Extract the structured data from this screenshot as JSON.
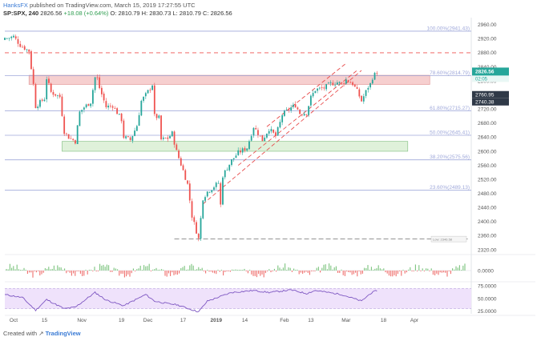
{
  "header": {
    "author": "HanksFX",
    "published": "published on TradingView.com, March 15, 2019 17:27:55 UTC",
    "symbol": "SP:SPX, 240",
    "last": "2826.56",
    "change": "+18.08 (+0.64%)",
    "ohlc": "O: 2810.79  H: 2830.73  L: 2810.79  C: 2826.56"
  },
  "footer": {
    "prefix": "Created with",
    "brand": "TradingView"
  },
  "colors": {
    "up": "#26a69a",
    "down": "#ef5350",
    "fib": "#9fa8da",
    "resistance_zone": "#f4c7c7",
    "support_zone": "#d9eed3",
    "channel": "#e84c4c",
    "rsi_line": "#7e57c2",
    "rsi_band": "#efe2fb",
    "price_tag": "#3d4a5c"
  },
  "chart_data": [
    {
      "type": "candlestick",
      "symbol": "SP:SPX",
      "timeframe": "240",
      "ylim": [
        2320,
        2980
      ],
      "y_ticks": [
        "2960.00",
        "2920.00",
        "2880.00",
        "2840.00",
        "2800.00",
        "2760.00",
        "2720.00",
        "2680.00",
        "2640.00",
        "2600.00",
        "2560.00",
        "2520.00",
        "2480.00",
        "2440.00",
        "2400.00",
        "2360.00",
        "2320.00"
      ],
      "x_ticks": [
        "Oct",
        "15",
        "Nov",
        "19",
        "Dec",
        "17",
        "2019",
        "14",
        "Feb",
        "13",
        "Mar",
        "18",
        "Apr"
      ],
      "x_tick_dates": [
        "2018-10-01",
        "2018-10-15",
        "2018-11-01",
        "2018-11-19",
        "2018-12-01",
        "2018-12-17",
        "2019-01-01",
        "2019-01-14",
        "2019-02-01",
        "2019-02-13",
        "2019-03-01",
        "2019-03-18",
        "2019-04-01"
      ],
      "close_path": [
        {
          "date": "2018-09-27",
          "close": 2920
        },
        {
          "date": "2018-10-01",
          "close": 2926
        },
        {
          "date": "2018-10-04",
          "close": 2902
        },
        {
          "date": "2018-10-08",
          "close": 2885
        },
        {
          "date": "2018-10-10",
          "close": 2790
        },
        {
          "date": "2018-10-11",
          "close": 2728
        },
        {
          "date": "2018-10-15",
          "close": 2750
        },
        {
          "date": "2018-10-16",
          "close": 2808
        },
        {
          "date": "2018-10-18",
          "close": 2768
        },
        {
          "date": "2018-10-22",
          "close": 2755
        },
        {
          "date": "2018-10-24",
          "close": 2656
        },
        {
          "date": "2018-10-26",
          "close": 2640
        },
        {
          "date": "2018-10-29",
          "close": 2628
        },
        {
          "date": "2018-10-31",
          "close": 2711
        },
        {
          "date": "2018-11-02",
          "close": 2725
        },
        {
          "date": "2018-11-05",
          "close": 2740
        },
        {
          "date": "2018-11-07",
          "close": 2810
        },
        {
          "date": "2018-11-08",
          "close": 2806
        },
        {
          "date": "2018-11-09",
          "close": 2780
        },
        {
          "date": "2018-11-12",
          "close": 2726
        },
        {
          "date": "2018-11-15",
          "close": 2730
        },
        {
          "date": "2018-11-19",
          "close": 2690
        },
        {
          "date": "2018-11-20",
          "close": 2641
        },
        {
          "date": "2018-11-23",
          "close": 2632
        },
        {
          "date": "2018-11-26",
          "close": 2673
        },
        {
          "date": "2018-11-28",
          "close": 2743
        },
        {
          "date": "2018-11-30",
          "close": 2760
        },
        {
          "date": "2018-12-03",
          "close": 2790
        },
        {
          "date": "2018-12-04",
          "close": 2700
        },
        {
          "date": "2018-12-06",
          "close": 2695
        },
        {
          "date": "2018-12-07",
          "close": 2633
        },
        {
          "date": "2018-12-10",
          "close": 2637
        },
        {
          "date": "2018-12-12",
          "close": 2651
        },
        {
          "date": "2018-12-14",
          "close": 2599
        },
        {
          "date": "2018-12-17",
          "close": 2545
        },
        {
          "date": "2018-12-19",
          "close": 2506
        },
        {
          "date": "2018-12-21",
          "close": 2416
        },
        {
          "date": "2018-12-24",
          "close": 2351
        },
        {
          "date": "2018-12-26",
          "close": 2467
        },
        {
          "date": "2018-12-28",
          "close": 2485
        },
        {
          "date": "2019-01-02",
          "close": 2510
        },
        {
          "date": "2019-01-03",
          "close": 2447
        },
        {
          "date": "2019-01-04",
          "close": 2531
        },
        {
          "date": "2019-01-08",
          "close": 2574
        },
        {
          "date": "2019-01-11",
          "close": 2596
        },
        {
          "date": "2019-01-15",
          "close": 2610
        },
        {
          "date": "2019-01-18",
          "close": 2670
        },
        {
          "date": "2019-01-22",
          "close": 2632
        },
        {
          "date": "2019-01-25",
          "close": 2664
        },
        {
          "date": "2019-01-28",
          "close": 2643
        },
        {
          "date": "2019-01-30",
          "close": 2681
        },
        {
          "date": "2019-01-31",
          "close": 2704
        },
        {
          "date": "2019-02-04",
          "close": 2724
        },
        {
          "date": "2019-02-06",
          "close": 2731
        },
        {
          "date": "2019-02-08",
          "close": 2708
        },
        {
          "date": "2019-02-11",
          "close": 2709
        },
        {
          "date": "2019-02-13",
          "close": 2753
        },
        {
          "date": "2019-02-15",
          "close": 2775
        },
        {
          "date": "2019-02-19",
          "close": 2780
        },
        {
          "date": "2019-02-22",
          "close": 2792
        },
        {
          "date": "2019-02-25",
          "close": 2796
        },
        {
          "date": "2019-02-27",
          "close": 2792
        },
        {
          "date": "2019-03-01",
          "close": 2803
        },
        {
          "date": "2019-03-04",
          "close": 2792
        },
        {
          "date": "2019-03-06",
          "close": 2771
        },
        {
          "date": "2019-03-08",
          "close": 2743
        },
        {
          "date": "2019-03-11",
          "close": 2783
        },
        {
          "date": "2019-03-12",
          "close": 2791
        },
        {
          "date": "2019-03-13",
          "close": 2810
        },
        {
          "date": "2019-03-15",
          "close": 2826
        }
      ],
      "last_price": "2826.56",
      "countdown": "02:05",
      "levels": [
        {
          "label": "100.00%(2941.43)",
          "value": 2941.43,
          "kind": "fib"
        },
        {
          "label": "78.60%(2814.79)",
          "value": 2814.79,
          "kind": "fib"
        },
        {
          "label": "61.80%(2715.27)",
          "value": 2715.27,
          "kind": "fib"
        },
        {
          "label": "50.00%(2645.41)",
          "value": 2645.41,
          "kind": "fib"
        },
        {
          "label": "38.20%(2575.56)",
          "value": 2575.56,
          "kind": "fib"
        },
        {
          "label": "23.60%(2489.13)",
          "value": 2489.13,
          "kind": "fib"
        },
        {
          "value": 2880,
          "kind": "dashed-red"
        },
        {
          "value": 2350.5,
          "kind": "dashed-low"
        }
      ],
      "price_tags": [
        {
          "label": "2760.95",
          "value": 2760.95
        },
        {
          "label": "2740.38",
          "value": 2740.38
        }
      ],
      "zones": [
        {
          "name": "resistance",
          "from": 2790,
          "to": 2816,
          "start": "2018-10-08",
          "end": "2019-04-08"
        },
        {
          "name": "support",
          "from": 2600,
          "to": 2628,
          "start": "2018-10-23",
          "end": "2019-03-29"
        }
      ],
      "channel": {
        "upper": [
          {
            "date": "2019-01-24",
            "value": 2670
          },
          {
            "date": "2019-03-01",
            "value": 2850
          }
        ],
        "lower": [
          {
            "date": "2018-12-26",
            "value": 2450
          },
          {
            "date": "2019-03-08",
            "value": 2830
          }
        ],
        "mid": [
          {
            "date": "2019-01-11",
            "value": 2560
          },
          {
            "date": "2019-03-06",
            "value": 2830
          }
        ]
      },
      "low_label": "Low: 2346.58"
    },
    {
      "type": "bar",
      "panel": "momentum histogram",
      "y_ticks": [
        "0.0000"
      ]
    },
    {
      "type": "line",
      "panel": "RSI",
      "y_ticks": [
        "75.0000",
        "50.0000",
        "25.0000"
      ],
      "ylim": [
        20,
        80
      ],
      "band": [
        30,
        70
      ],
      "values_series": [
        {
          "date": "2018-09-27",
          "value": 58
        },
        {
          "date": "2018-10-05",
          "value": 52
        },
        {
          "date": "2018-10-11",
          "value": 27
        },
        {
          "date": "2018-10-16",
          "value": 48
        },
        {
          "date": "2018-10-24",
          "value": 30
        },
        {
          "date": "2018-10-29",
          "value": 33
        },
        {
          "date": "2018-11-07",
          "value": 62
        },
        {
          "date": "2018-11-12",
          "value": 47
        },
        {
          "date": "2018-11-20",
          "value": 36
        },
        {
          "date": "2018-11-30",
          "value": 58
        },
        {
          "date": "2018-12-04",
          "value": 45
        },
        {
          "date": "2018-12-10",
          "value": 40
        },
        {
          "date": "2018-12-14",
          "value": 38
        },
        {
          "date": "2018-12-21",
          "value": 28
        },
        {
          "date": "2018-12-24",
          "value": 24
        },
        {
          "date": "2018-12-28",
          "value": 45
        },
        {
          "date": "2019-01-08",
          "value": 62
        },
        {
          "date": "2019-01-18",
          "value": 66
        },
        {
          "date": "2019-01-25",
          "value": 62
        },
        {
          "date": "2019-02-04",
          "value": 67
        },
        {
          "date": "2019-02-11",
          "value": 60
        },
        {
          "date": "2019-02-15",
          "value": 66
        },
        {
          "date": "2019-02-27",
          "value": 58
        },
        {
          "date": "2019-03-08",
          "value": 45
        },
        {
          "date": "2019-03-12",
          "value": 60
        },
        {
          "date": "2019-03-15",
          "value": 66
        }
      ]
    }
  ]
}
